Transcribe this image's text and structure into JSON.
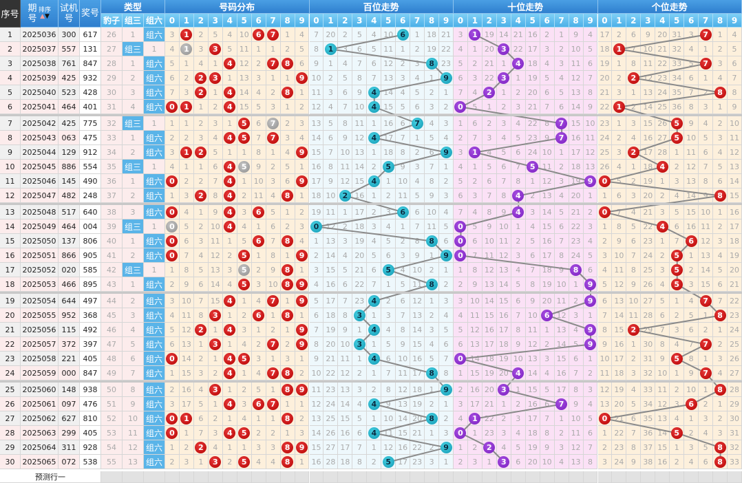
{
  "header": {
    "seq": "序号",
    "issue": "期号",
    "sort_label": "排序",
    "trial": "试机号",
    "draw": "奖号",
    "type_group": "类型",
    "types": [
      "豹子",
      "组三",
      "组六"
    ],
    "dist_group": "号码分布",
    "hundreds_group": "百位走势",
    "tens_group": "十位走势",
    "units_group": "个位走势",
    "digits": [
      "0",
      "1",
      "2",
      "3",
      "4",
      "5",
      "6",
      "7",
      "8",
      "9"
    ]
  },
  "rows": [
    {
      "seq": "1",
      "issue": "2025036",
      "trial": "300",
      "draw": "617"
    },
    {
      "seq": "2",
      "issue": "2025037",
      "trial": "557",
      "draw": "131"
    },
    {
      "seq": "3",
      "issue": "2025038",
      "trial": "761",
      "draw": "847"
    },
    {
      "seq": "4",
      "issue": "2025039",
      "trial": "425",
      "draw": "932"
    },
    {
      "seq": "5",
      "issue": "2025040",
      "trial": "523",
      "draw": "428"
    },
    {
      "seq": "6",
      "issue": "2025041",
      "trial": "464",
      "draw": "401"
    },
    {
      "seq": "7",
      "issue": "2025042",
      "trial": "425",
      "draw": "775"
    },
    {
      "seq": "8",
      "issue": "2025043",
      "trial": "063",
      "draw": "475"
    },
    {
      "seq": "9",
      "issue": "2025044",
      "trial": "129",
      "draw": "912"
    },
    {
      "seq": "10",
      "issue": "2025045",
      "trial": "886",
      "draw": "554"
    },
    {
      "seq": "11",
      "issue": "2025046",
      "trial": "145",
      "draw": "490"
    },
    {
      "seq": "12",
      "issue": "2025047",
      "trial": "482",
      "draw": "248"
    },
    {
      "seq": "13",
      "issue": "2025048",
      "trial": "517",
      "draw": "640"
    },
    {
      "seq": "14",
      "issue": "2025049",
      "trial": "464",
      "draw": "004"
    },
    {
      "seq": "15",
      "issue": "2025050",
      "trial": "137",
      "draw": "806"
    },
    {
      "seq": "16",
      "issue": "2025051",
      "trial": "866",
      "draw": "905"
    },
    {
      "seq": "17",
      "issue": "2025052",
      "trial": "020",
      "draw": "585"
    },
    {
      "seq": "18",
      "issue": "2025053",
      "trial": "466",
      "draw": "895"
    },
    {
      "seq": "19",
      "issue": "2025054",
      "trial": "644",
      "draw": "497"
    },
    {
      "seq": "20",
      "issue": "2025055",
      "trial": "952",
      "draw": "368"
    },
    {
      "seq": "21",
      "issue": "2025056",
      "trial": "115",
      "draw": "492"
    },
    {
      "seq": "22",
      "issue": "2025057",
      "trial": "372",
      "draw": "397"
    },
    {
      "seq": "23",
      "issue": "2025058",
      "trial": "221",
      "draw": "405"
    },
    {
      "seq": "24",
      "issue": "2025059",
      "trial": "000",
      "draw": "847"
    },
    {
      "seq": "25",
      "issue": "2025060",
      "trial": "148",
      "draw": "938"
    },
    {
      "seq": "26",
      "issue": "2025061",
      "trial": "097",
      "draw": "476"
    },
    {
      "seq": "27",
      "issue": "2025062",
      "trial": "627",
      "draw": "810"
    },
    {
      "seq": "28",
      "issue": "2025063",
      "trial": "299",
      "draw": "405"
    },
    {
      "seq": "29",
      "issue": "2025064",
      "trial": "311",
      "draw": "928"
    },
    {
      "seq": "30",
      "issue": "2025065",
      "trial": "072",
      "draw": "538"
    }
  ],
  "first_row_omissions": {
    "types": [
      26,
      1,
      null
    ],
    "dist": [
      3,
      null,
      2,
      5,
      4,
      10,
      null,
      null,
      1,
      4
    ],
    "hundreds": [
      7,
      20,
      2,
      5,
      4,
      10,
      null,
      1,
      18,
      21
    ],
    "tens": [
      3,
      null,
      19,
      14,
      21,
      16,
      2,
      1,
      9,
      4
    ],
    "units": [
      17,
      2,
      6,
      9,
      20,
      31,
      3,
      null,
      1,
      4
    ]
  },
  "predict_row_label": "预测行一",
  "colors": {
    "dist_ball": "#cc0000",
    "repeat_ball": "#9a9a9a",
    "hundreds_ball": "#1fb5c9",
    "tens_ball": "#8e2ccf",
    "units_ball": "#cc0000",
    "dist_bg": "#fdf0dc",
    "hundreds_bg": "#eef8fc",
    "tens_bg": "#fbe1f6",
    "units_bg": "#fdf0dc",
    "type_bg": "#fcecec",
    "type_hit": "#5ab4e8",
    "trend_line": "#8a8a8a"
  }
}
